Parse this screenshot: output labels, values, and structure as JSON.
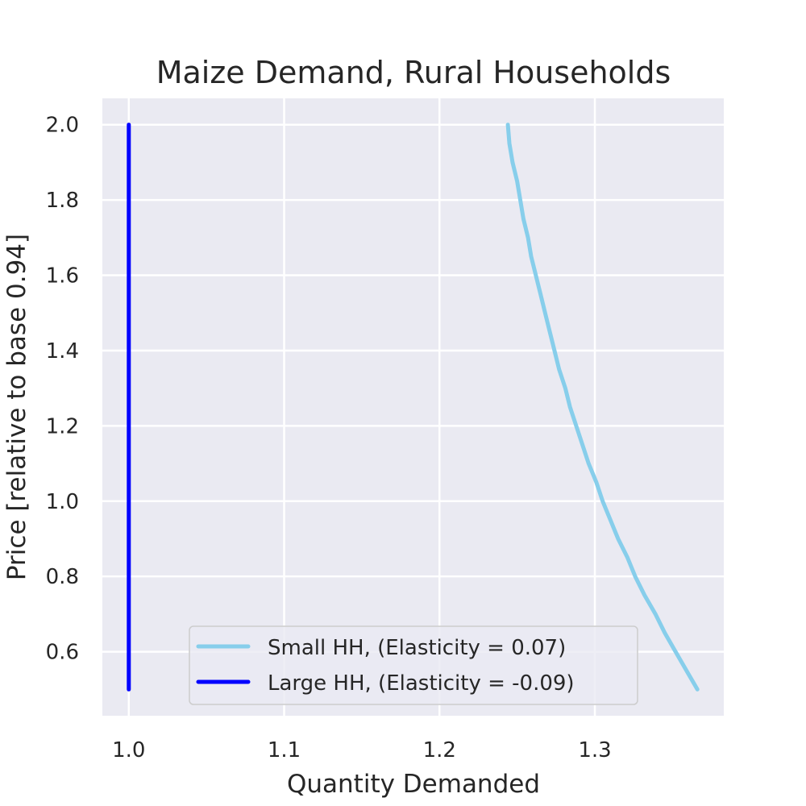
{
  "chart_data": {
    "type": "line",
    "title": "Maize Demand, Rural Households",
    "xlabel": "Quantity Demanded",
    "ylabel": "Price [relative to base 0.94]",
    "xlim": [
      0.983,
      1.383
    ],
    "ylim": [
      0.43,
      2.07
    ],
    "xticks": [
      1.0,
      1.1,
      1.2,
      1.3
    ],
    "xtick_labels": [
      "1.0",
      "1.1",
      "1.2",
      "1.3"
    ],
    "yticks": [
      0.6,
      0.8,
      1.0,
      1.2,
      1.4,
      1.6,
      1.8,
      2.0
    ],
    "ytick_labels": [
      "0.6",
      "0.8",
      "1.0",
      "1.2",
      "1.4",
      "1.6",
      "1.8",
      "2.0"
    ],
    "grid": true,
    "legend_position": "lower-right",
    "series": [
      {
        "name": "Small HH, (Elasticity = 0.07)",
        "color": "#87ceeb",
        "points": [
          [
            1.366,
            0.5
          ],
          [
            1.359,
            0.55
          ],
          [
            1.352,
            0.6
          ],
          [
            1.345,
            0.65
          ],
          [
            1.339,
            0.7
          ],
          [
            1.332,
            0.75
          ],
          [
            1.326,
            0.8
          ],
          [
            1.321,
            0.85
          ],
          [
            1.315,
            0.9
          ],
          [
            1.31,
            0.95
          ],
          [
            1.305,
            1.0
          ],
          [
            1.301,
            1.05
          ],
          [
            1.296,
            1.1
          ],
          [
            1.292,
            1.15
          ],
          [
            1.288,
            1.2
          ],
          [
            1.284,
            1.25
          ],
          [
            1.281,
            1.3
          ],
          [
            1.277,
            1.35
          ],
          [
            1.274,
            1.4
          ],
          [
            1.271,
            1.45
          ],
          [
            1.268,
            1.5
          ],
          [
            1.265,
            1.55
          ],
          [
            1.262,
            1.6
          ],
          [
            1.259,
            1.65
          ],
          [
            1.257,
            1.7
          ],
          [
            1.254,
            1.75
          ],
          [
            1.252,
            1.8
          ],
          [
            1.25,
            1.85
          ],
          [
            1.247,
            1.9
          ],
          [
            1.245,
            1.95
          ],
          [
            1.244,
            2.0
          ]
        ]
      },
      {
        "name": "Large HH, (Elasticity = -0.09)",
        "color": "#0000ff",
        "points": [
          [
            1.0,
            0.5
          ],
          [
            1.0,
            2.0
          ]
        ]
      }
    ]
  }
}
